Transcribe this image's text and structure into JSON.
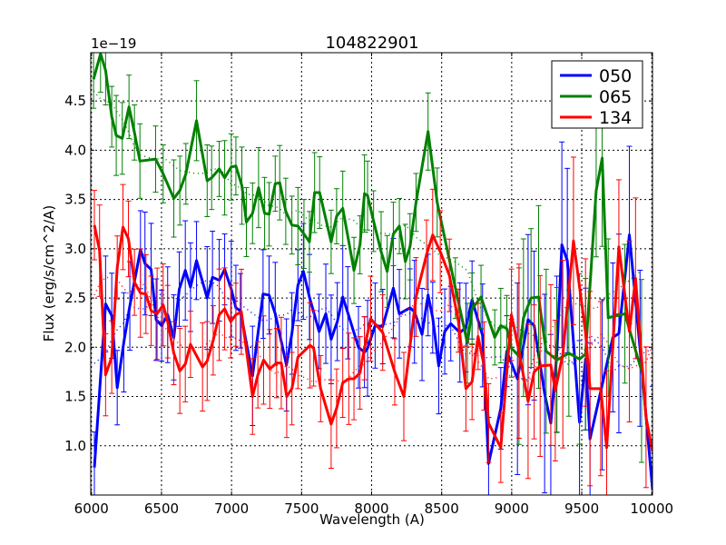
{
  "chart_data": {
    "type": "line",
    "title": "104822901",
    "xlabel": "Wavelength (A)",
    "ylabel": "Flux (erg/s/cm^2/A)",
    "y_offset_label": "1e−19",
    "xlim": [
      5995,
      10005
    ],
    "ylim": [
      0.5,
      4.99
    ],
    "xticks": [
      6000,
      6500,
      7000,
      7500,
      8000,
      8500,
      9000,
      9500,
      10000
    ],
    "xtick_labels": [
      "6000",
      "6500",
      "7000",
      "7500",
      "8000",
      "8500",
      "9000",
      "9500",
      "10000"
    ],
    "yticks": [
      1.0,
      1.5,
      2.0,
      2.5,
      3.0,
      3.5,
      4.0,
      4.5
    ],
    "ytick_labels": [
      "1.0",
      "1.5",
      "2.0",
      "2.5",
      "3.0",
      "3.5",
      "4.0",
      "4.5"
    ],
    "grid": true,
    "legend_position": "top-right",
    "series": [
      {
        "name": "050",
        "color": "#0000ff",
        "yerr_by_range": [
          [
            6000,
            9000,
            0.45
          ],
          [
            9000,
            10005,
            0.9
          ]
        ],
        "x": [
          6021,
          6101,
          6145,
          6184,
          6231,
          6274,
          6350,
          6382,
          6426,
          6462,
          6501,
          6544,
          6588,
          6627,
          6670,
          6707,
          6750,
          6826,
          6864,
          6912,
          6951,
          6998,
          7031,
          7063,
          7150,
          7225,
          7268,
          7312,
          7392,
          7431,
          7474,
          7513,
          7556,
          7625,
          7673,
          7711,
          7755,
          7794,
          7830,
          7906,
          7949,
          7971,
          8025,
          8079,
          8155,
          8198,
          8274,
          8306,
          8360,
          8403,
          8436,
          8479,
          8522,
          8565,
          8630,
          8673,
          8717,
          8792,
          8835,
          8922,
          8965,
          9041,
          9117,
          9160,
          9235,
          9279,
          9322,
          9358,
          9397,
          9484,
          9527,
          9559,
          9646,
          9722,
          9765,
          9840,
          9916,
          10005
        ],
        "y": [
          0.78,
          2.44,
          2.32,
          1.59,
          2.05,
          2.42,
          2.99,
          2.85,
          2.79,
          2.28,
          2.22,
          2.33,
          2.1,
          2.59,
          2.78,
          2.61,
          2.88,
          2.5,
          2.71,
          2.68,
          2.79,
          2.59,
          2.4,
          2.37,
          1.71,
          2.54,
          2.53,
          2.34,
          1.82,
          2.14,
          2.63,
          2.77,
          2.51,
          2.16,
          2.34,
          2.08,
          2.26,
          2.51,
          2.35,
          2.0,
          1.95,
          1.99,
          2.22,
          2.21,
          2.6,
          2.34,
          2.4,
          2.36,
          2.13,
          2.53,
          2.3,
          1.81,
          2.16,
          2.24,
          2.15,
          2.2,
          2.48,
          2.12,
          0.82,
          1.38,
          1.96,
          1.68,
          2.28,
          2.22,
          1.53,
          1.23,
          1.93,
          3.04,
          2.88,
          1.24,
          1.88,
          1.07,
          1.62,
          2.1,
          2.14,
          3.14,
          1.99,
          0.56
        ]
      },
      {
        "name": "065",
        "color": "#008000",
        "yerr_by_range": [
          [
            6000,
            9000,
            0.35
          ],
          [
            9000,
            10005,
            0.8
          ]
        ],
        "x": [
          6015,
          6065,
          6101,
          6145,
          6177,
          6220,
          6268,
          6307,
          6346,
          6458,
          6512,
          6588,
          6631,
          6674,
          6750,
          6826,
          6858,
          6912,
          6951,
          6998,
          7031,
          7074,
          7106,
          7150,
          7193,
          7236,
          7268,
          7312,
          7344,
          7387,
          7431,
          7474,
          7517,
          7556,
          7593,
          7629,
          7711,
          7750,
          7794,
          7874,
          7917,
          7949,
          7971,
          8014,
          8068,
          8111,
          8155,
          8198,
          8241,
          8274,
          8317,
          8403,
          8468,
          8598,
          8684,
          8717,
          8781,
          8879,
          8922,
          8965,
          8998,
          9052,
          9084,
          9138,
          9192,
          9246,
          9322,
          9408,
          9484,
          9527,
          9603,
          9646,
          9689,
          9808,
          9927
        ],
        "y": [
          4.72,
          4.98,
          4.81,
          4.34,
          4.15,
          4.12,
          4.44,
          4.18,
          3.89,
          3.91,
          3.76,
          3.51,
          3.59,
          3.76,
          4.3,
          3.69,
          3.72,
          3.81,
          3.72,
          3.83,
          3.84,
          3.64,
          3.27,
          3.36,
          3.62,
          3.36,
          3.35,
          3.66,
          3.67,
          3.38,
          3.24,
          3.23,
          3.15,
          3.07,
          3.57,
          3.57,
          3.07,
          3.33,
          3.41,
          2.78,
          3.04,
          3.56,
          3.54,
          3.28,
          2.97,
          2.77,
          3.15,
          3.23,
          2.87,
          3.02,
          3.47,
          4.19,
          3.47,
          2.6,
          2.04,
          2.39,
          2.51,
          2.1,
          2.22,
          2.19,
          1.99,
          1.91,
          2.3,
          2.5,
          2.51,
          1.96,
          1.87,
          1.94,
          1.88,
          1.93,
          3.59,
          3.92,
          2.3,
          2.34,
          1.76
        ]
      },
      {
        "name": "134",
        "color": "#ff0000",
        "yerr_by_range": [
          [
            6000,
            9000,
            0.4
          ],
          [
            9000,
            10005,
            0.85
          ]
        ],
        "x": [
          6021,
          6058,
          6101,
          6145,
          6184,
          6225,
          6264,
          6307,
          6350,
          6389,
          6426,
          6469,
          6512,
          6544,
          6588,
          6631,
          6670,
          6707,
          6793,
          6826,
          6869,
          6912,
          6951,
          6994,
          7031,
          7070,
          7150,
          7188,
          7229,
          7273,
          7322,
          7355,
          7394,
          7431,
          7474,
          7560,
          7586,
          7636,
          7711,
          7750,
          7794,
          7837,
          7874,
          7917,
          7949,
          7993,
          8079,
          8165,
          8230,
          8317,
          8392,
          8436,
          8490,
          8555,
          8619,
          8673,
          8717,
          8760,
          8803,
          8835,
          8922,
          8998,
          9052,
          9117,
          9160,
          9203,
          9279,
          9311,
          9365,
          9441,
          9527,
          9559,
          9635,
          9678,
          9765,
          9840,
          9884,
          9959,
          10005
        ],
        "y": [
          3.24,
          2.98,
          1.72,
          1.9,
          2.81,
          3.22,
          3.1,
          2.66,
          2.55,
          2.54,
          2.37,
          2.34,
          2.43,
          2.26,
          1.94,
          1.76,
          1.83,
          2.03,
          1.8,
          1.86,
          2.07,
          2.33,
          2.39,
          2.26,
          2.33,
          2.36,
          1.5,
          1.72,
          1.87,
          1.78,
          1.84,
          1.84,
          1.5,
          1.58,
          1.9,
          2.02,
          1.99,
          1.58,
          1.22,
          1.38,
          1.64,
          1.68,
          1.68,
          1.74,
          1.99,
          2.29,
          2.15,
          1.75,
          1.5,
          2.51,
          2.94,
          3.14,
          2.97,
          2.73,
          2.27,
          1.58,
          1.65,
          2.11,
          1.81,
          1.23,
          0.98,
          2.33,
          1.96,
          1.45,
          1.75,
          1.81,
          1.82,
          1.56,
          1.93,
          3.08,
          2.15,
          1.58,
          1.58,
          0.98,
          3.02,
          2.16,
          2.7,
          1.29,
          0.94
        ]
      }
    ]
  }
}
